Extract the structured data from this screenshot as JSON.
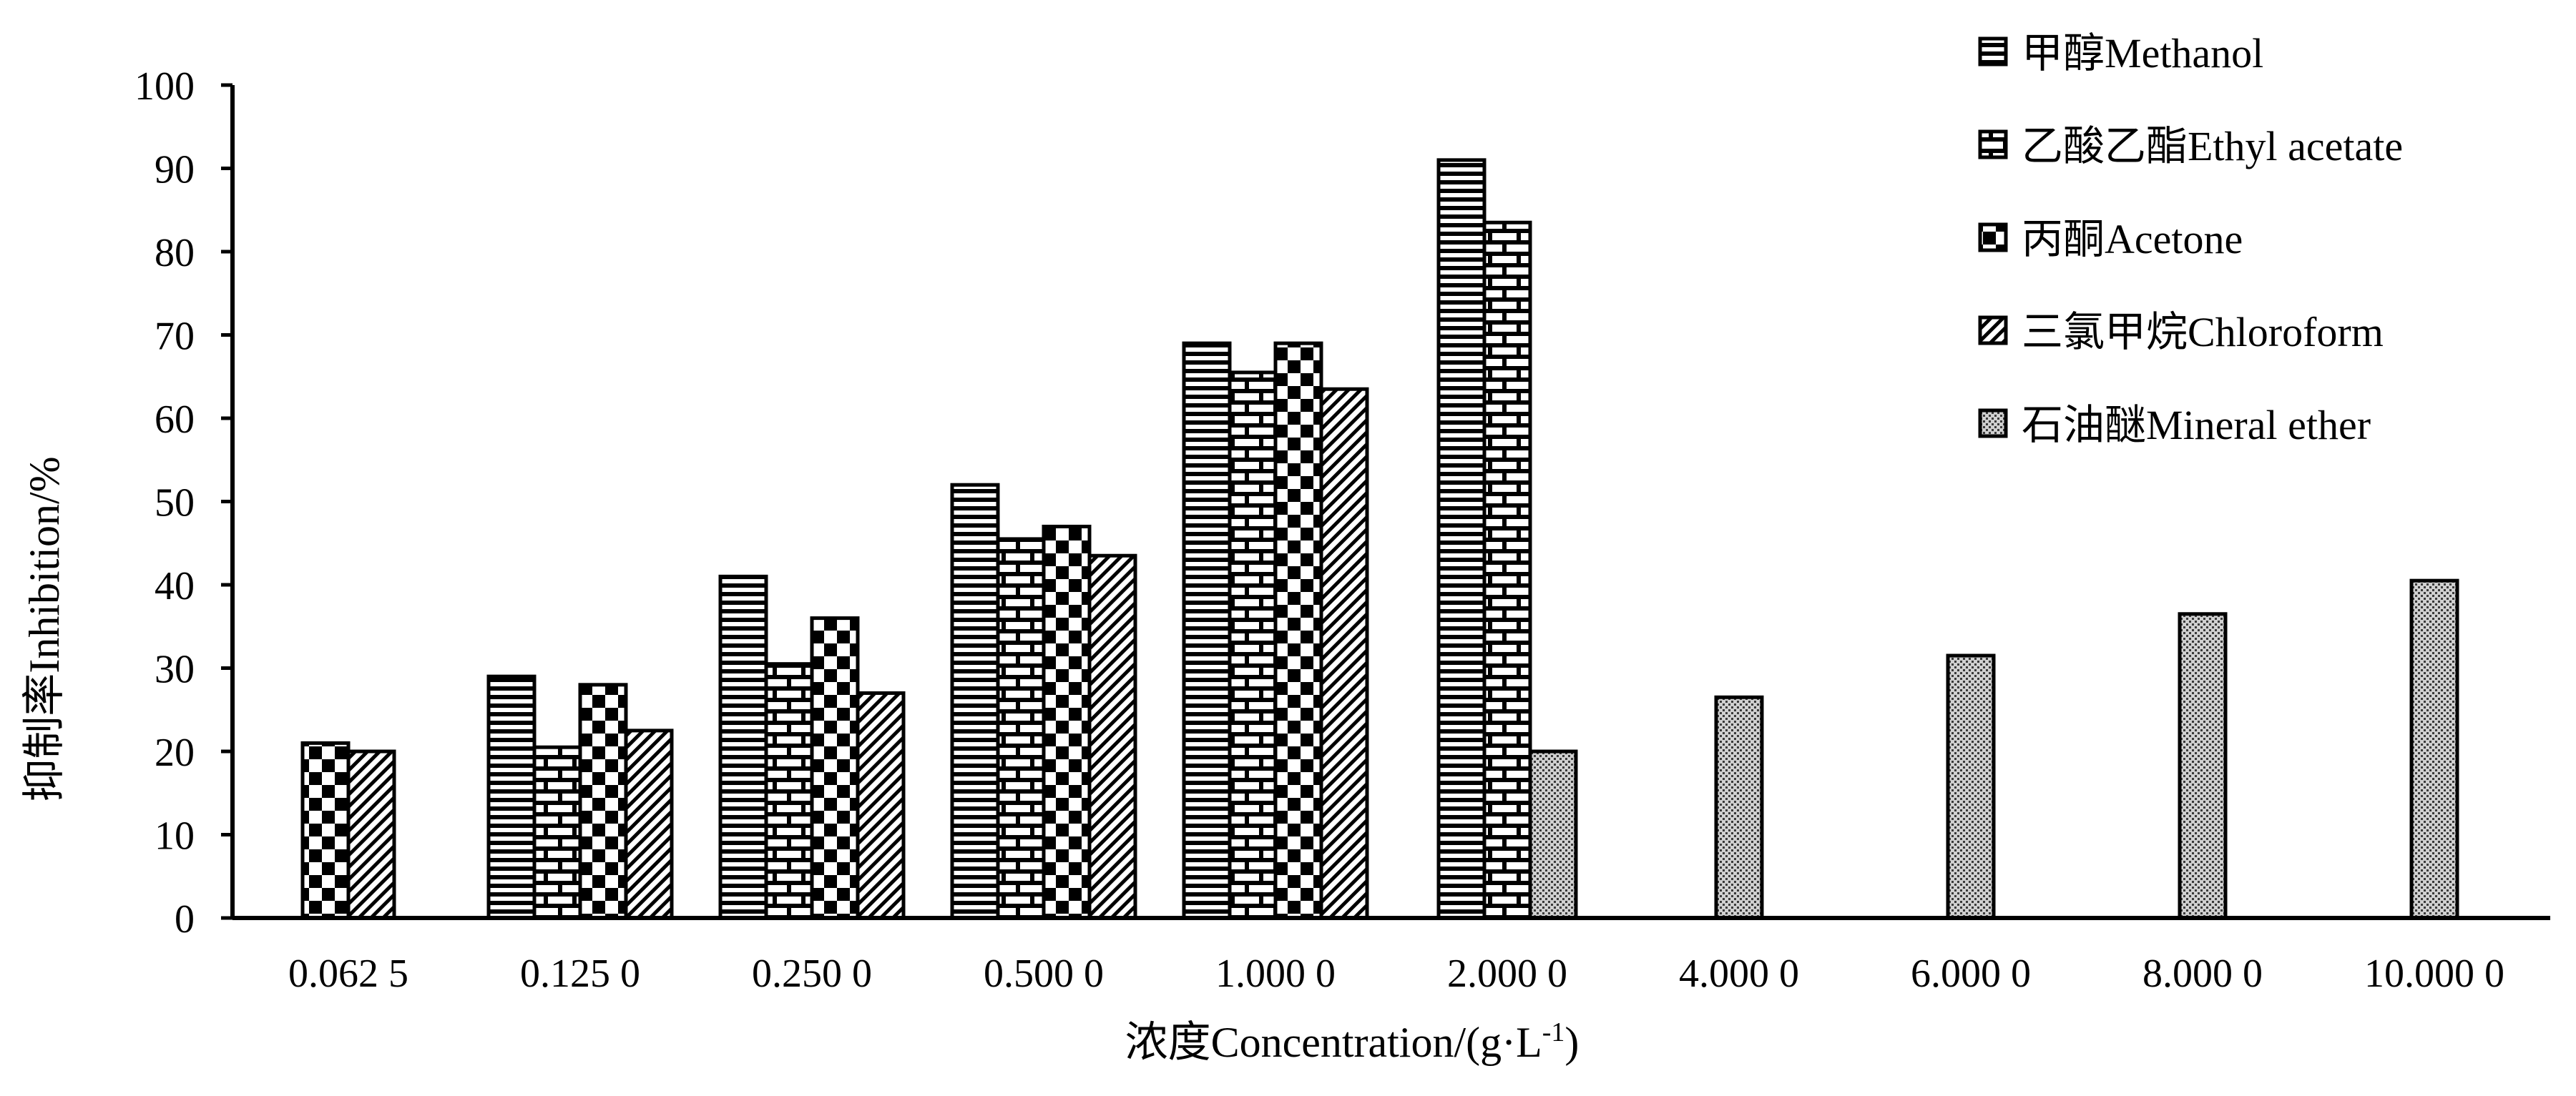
{
  "chart_data": {
    "type": "bar",
    "title": "",
    "xlabel": "浓度Concentration/(g·L",
    "xlabel_sup": "-1",
    "xlabel_end": ")",
    "ylabel": "抑制率Inhibition/%",
    "ylim": [
      0,
      100
    ],
    "yticks": [
      0,
      10,
      20,
      30,
      40,
      50,
      60,
      70,
      80,
      90,
      100
    ],
    "grid": false,
    "legend_position": "top-right",
    "categories": [
      "0.062 5",
      "0.125 0",
      "0.250 0",
      "0.500 0",
      "1.000 0",
      "2.000 0",
      "4.000 0",
      "6.000 0",
      "8.000 0",
      "10.000 0"
    ],
    "series": [
      {
        "name": "甲醇Methanol",
        "pattern": "hstripes",
        "values": [
          null,
          29,
          41,
          52,
          69,
          91,
          null,
          null,
          null,
          null
        ]
      },
      {
        "name": "乙酸乙酯Ethyl acetate",
        "pattern": "bricks",
        "values": [
          null,
          20.5,
          30.5,
          45.5,
          65.5,
          83.5,
          null,
          null,
          null,
          null
        ]
      },
      {
        "name": "丙酮Acetone",
        "pattern": "checker",
        "values": [
          21,
          28,
          36,
          47,
          69,
          null,
          null,
          null,
          null,
          null
        ]
      },
      {
        "name": "三氯甲烷Chloroform",
        "pattern": "diagonal",
        "values": [
          20,
          22.5,
          27,
          43.5,
          63.5,
          null,
          null,
          null,
          null,
          null
        ]
      },
      {
        "name": "石油醚Mineral ether",
        "pattern": "dots",
        "values": [
          null,
          null,
          null,
          null,
          null,
          20,
          26.5,
          31.5,
          36.5,
          40.5
        ]
      }
    ]
  }
}
